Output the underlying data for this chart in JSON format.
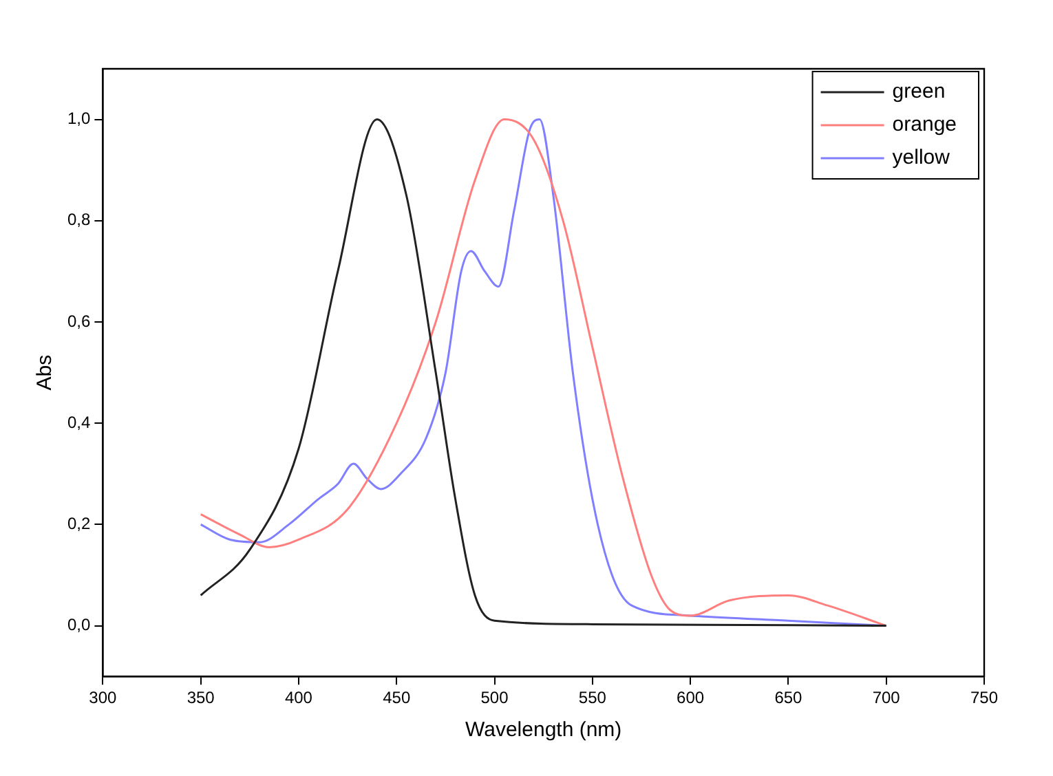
{
  "chart_data": {
    "type": "line",
    "xlabel": "Wavelength (nm)",
    "ylabel": "Abs",
    "xlim": [
      300,
      750
    ],
    "xticks": [
      300,
      350,
      400,
      450,
      500,
      550,
      600,
      650,
      700,
      750
    ],
    "ylim": [
      -0.1,
      1.1
    ],
    "yticks": [
      {
        "value": 0,
        "label": "0,0"
      },
      {
        "value": 0.2,
        "label": "0,2"
      },
      {
        "value": 0.4,
        "label": "0,4"
      },
      {
        "value": 0.6,
        "label": "0,6"
      },
      {
        "value": 0.8,
        "label": "0,8"
      },
      {
        "value": 1,
        "label": "1,0"
      }
    ],
    "grid": false,
    "legend": "top right",
    "marker": "none",
    "line_style": "solid",
    "series": [
      {
        "name": "green",
        "color": "#222222",
        "x": [
          350,
          375,
          400,
          420,
          440,
          455,
          470,
          480,
          490,
          500,
          550,
          700
        ],
        "values": [
          0.06,
          0.15,
          0.35,
          0.7,
          1.0,
          0.85,
          0.5,
          0.25,
          0.06,
          0.01,
          0.003,
          0
        ]
      },
      {
        "name": "orange",
        "color": "#ff7f7f",
        "x": [
          350,
          370,
          385,
          400,
          425,
          450,
          470,
          490,
          505,
          520,
          535,
          550,
          565,
          580,
          590,
          600,
          620,
          650,
          670,
          700
        ],
        "values": [
          0.22,
          0.18,
          0.155,
          0.17,
          0.23,
          0.4,
          0.6,
          0.88,
          1.0,
          0.96,
          0.8,
          0.55,
          0.3,
          0.1,
          0.03,
          0.02,
          0.05,
          0.06,
          0.04,
          0
        ]
      },
      {
        "name": "yellow",
        "color": "#7f7fff",
        "x": [
          350,
          365,
          380,
          395,
          410,
          420,
          428,
          435,
          442,
          452,
          465,
          475,
          483,
          488,
          495,
          502,
          510,
          518,
          523,
          530,
          540,
          550,
          560,
          570,
          600,
          650,
          700
        ],
        "values": [
          0.2,
          0.17,
          0.165,
          0.2,
          0.25,
          0.28,
          0.32,
          0.29,
          0.27,
          0.3,
          0.37,
          0.5,
          0.7,
          0.74,
          0.7,
          0.67,
          0.82,
          0.98,
          1.0,
          0.85,
          0.5,
          0.25,
          0.1,
          0.04,
          0.02,
          0.01,
          0
        ]
      }
    ]
  }
}
